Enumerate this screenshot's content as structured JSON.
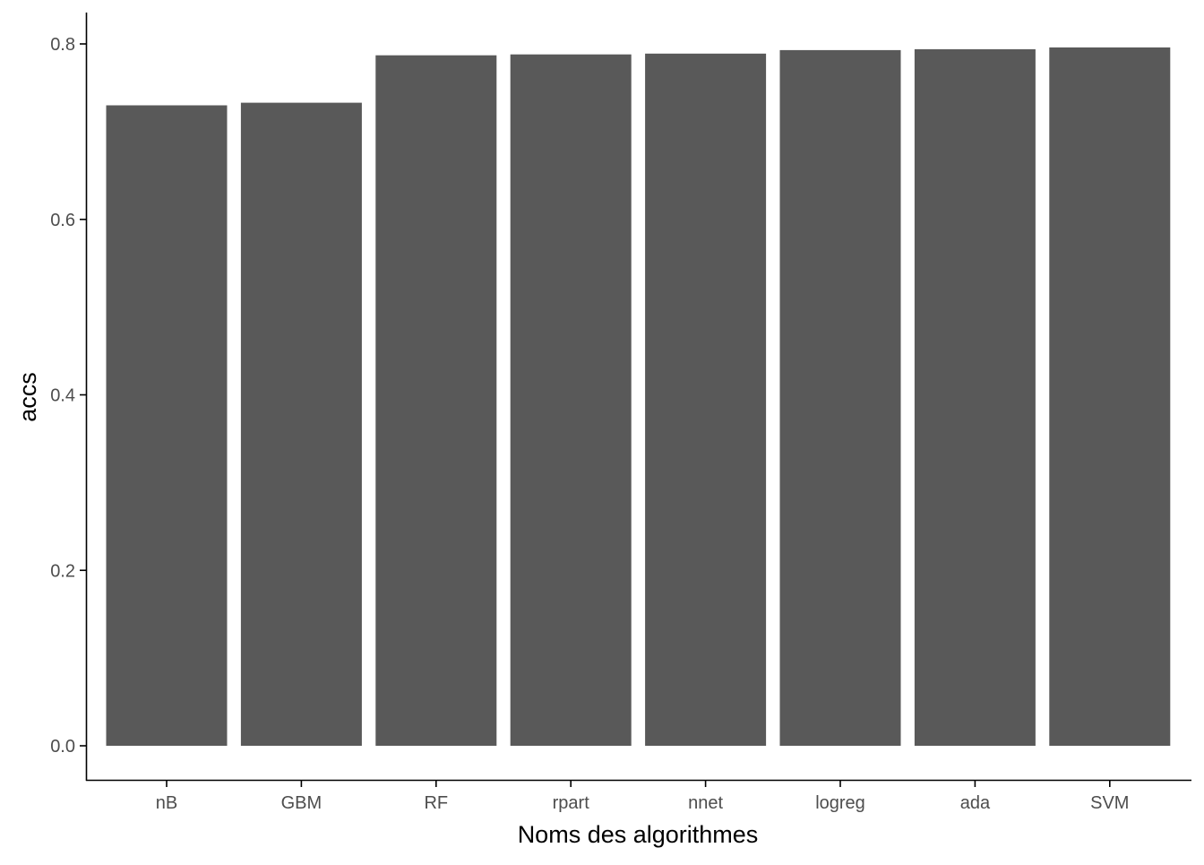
{
  "chart_data": {
    "type": "bar",
    "title": "",
    "xlabel": "Noms des algorithmes",
    "ylabel": "accs",
    "categories": [
      "nB",
      "GBM",
      "RF",
      "rpart",
      "nnet",
      "logreg",
      "ada",
      "SVM"
    ],
    "values": [
      0.73,
      0.733,
      0.787,
      0.788,
      0.789,
      0.793,
      0.794,
      0.796
    ],
    "ylim": [
      0,
      0.8
    ],
    "yticks": [
      0.0,
      0.2,
      0.4,
      0.6,
      0.8
    ],
    "ytick_labels": [
      "0.0",
      "0.2",
      "0.4",
      "0.6",
      "0.8"
    ],
    "grid": false,
    "legend": "none",
    "colors": {
      "bar": "#595959",
      "axis": "#000000",
      "tick_text": "#4d4d4d"
    }
  }
}
